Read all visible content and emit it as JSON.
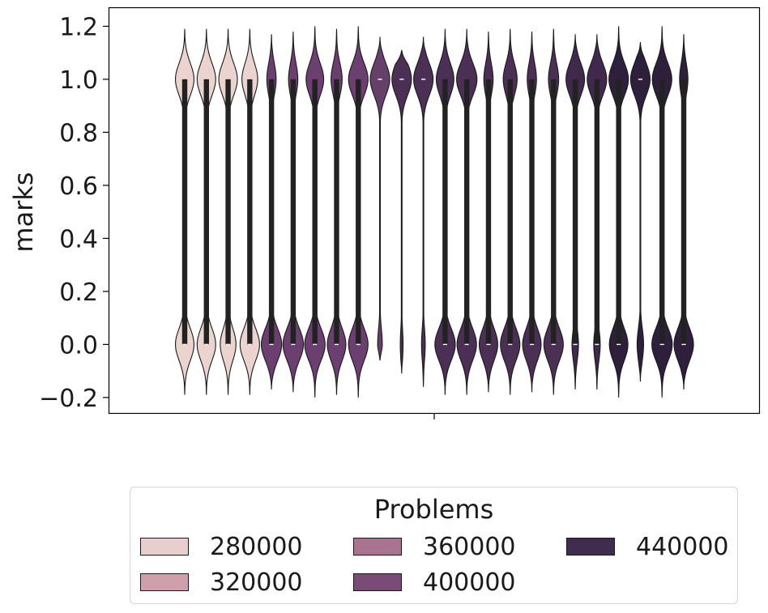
{
  "chart_data": {
    "type": "violin",
    "ylabel": "marks",
    "xlabel": "",
    "ylim": [
      -0.26,
      1.27
    ],
    "yticks": [
      "−0.2",
      "0.0",
      "0.2",
      "0.4",
      "0.6",
      "0.8",
      "1.0",
      "1.2"
    ],
    "ytick_values": [
      -0.2,
      0.0,
      0.2,
      0.4,
      0.6,
      0.8,
      1.0,
      1.2
    ],
    "legend": {
      "title": "Problems",
      "entries": [
        {
          "label": "280000",
          "color": "#e8cfcd"
        },
        {
          "label": "320000",
          "color": "#cfa0ab"
        },
        {
          "label": "360000",
          "color": "#a8748f"
        },
        {
          "label": "400000",
          "color": "#7a4b77"
        },
        {
          "label": "440000",
          "color": "#402c4f"
        }
      ]
    },
    "series": [
      {
        "color": "#ebd3cf",
        "q1": 0.0,
        "q3": 1.0,
        "wlo": 0.0,
        "whi": 1.0,
        "lo": -0.19,
        "hi": 1.19,
        "top_w": 1.0,
        "bot_w": 1.0
      },
      {
        "color": "#ebd3cf",
        "q1": 0.0,
        "q3": 1.0,
        "wlo": 0.0,
        "whi": 1.0,
        "lo": -0.19,
        "hi": 1.19,
        "top_w": 1.0,
        "bot_w": 1.0
      },
      {
        "color": "#ebd3cf",
        "q1": 0.0,
        "q3": 1.0,
        "wlo": 0.0,
        "whi": 1.0,
        "lo": -0.19,
        "hi": 1.19,
        "top_w": 1.0,
        "bot_w": 0.85
      },
      {
        "color": "#ebd3cf",
        "q1": 0.0,
        "q3": 1.0,
        "wlo": 0.0,
        "whi": 1.0,
        "lo": -0.19,
        "hi": 1.19,
        "top_w": 0.85,
        "bot_w": 1.05
      },
      {
        "color": "#6b3f6f",
        "q1": 0.0,
        "q3": 1.0,
        "wlo": 0.0,
        "whi": 1.0,
        "lo": -0.17,
        "hi": 1.17,
        "top_w": 0.5,
        "bot_w": 1.1
      },
      {
        "color": "#6b3f6f",
        "q1": 0.0,
        "q3": 1.0,
        "wlo": 0.0,
        "whi": 1.0,
        "lo": -0.18,
        "hi": 1.18,
        "top_w": 0.5,
        "bot_w": 1.1
      },
      {
        "color": "#6b3f6f",
        "q1": 0.0,
        "q3": 1.0,
        "wlo": 0.0,
        "whi": 1.0,
        "lo": -0.2,
        "hi": 1.2,
        "top_w": 0.95,
        "bot_w": 1.1
      },
      {
        "color": "#6b3f6f",
        "q1": 0.0,
        "q3": 1.0,
        "wlo": 0.0,
        "whi": 1.0,
        "lo": -0.19,
        "hi": 1.19,
        "top_w": 0.6,
        "bot_w": 1.0
      },
      {
        "color": "#6b3f6f",
        "q1": 0.0,
        "q3": 1.0,
        "wlo": 0.0,
        "whi": 1.0,
        "lo": -0.2,
        "hi": 1.2,
        "top_w": 1.05,
        "bot_w": 1.05
      },
      {
        "color": "#66406b",
        "q1": 1.0,
        "q3": 1.0,
        "wlo": 1.0,
        "whi": 1.0,
        "lo": -0.06,
        "hi": 1.16,
        "top_w": 1.05,
        "bot_w": 0.25
      },
      {
        "color": "#4b2f55",
        "q1": 1.0,
        "q3": 1.0,
        "wlo": 1.0,
        "whi": 1.0,
        "lo": -0.11,
        "hi": 1.11,
        "top_w": 1.05,
        "bot_w": 0.15
      },
      {
        "color": "#4b2f55",
        "q1": 1.0,
        "q3": 1.0,
        "wlo": 1.0,
        "whi": 1.0,
        "lo": -0.16,
        "hi": 1.16,
        "top_w": 1.05,
        "bot_w": 0.2
      },
      {
        "color": "#4b2f55",
        "q1": 0.0,
        "q3": 1.0,
        "wlo": 0.0,
        "whi": 1.0,
        "lo": -0.19,
        "hi": 1.19,
        "top_w": 0.95,
        "bot_w": 1.1
      },
      {
        "color": "#4b2f55",
        "q1": 0.0,
        "q3": 1.0,
        "wlo": 0.0,
        "whi": 1.0,
        "lo": -0.19,
        "hi": 1.19,
        "top_w": 1.1,
        "bot_w": 1.05
      },
      {
        "color": "#4b2f55",
        "q1": 0.0,
        "q3": 1.0,
        "wlo": 0.0,
        "whi": 1.0,
        "lo": -0.18,
        "hi": 1.18,
        "top_w": 0.5,
        "bot_w": 1.0
      },
      {
        "color": "#4b2f55",
        "q1": 0.0,
        "q3": 1.0,
        "wlo": 0.0,
        "whi": 1.0,
        "lo": -0.19,
        "hi": 1.19,
        "top_w": 0.75,
        "bot_w": 1.05
      },
      {
        "color": "#4b2f55",
        "q1": 0.0,
        "q3": 1.0,
        "wlo": 0.0,
        "whi": 1.0,
        "lo": -0.18,
        "hi": 1.18,
        "top_w": 0.5,
        "bot_w": 1.0
      },
      {
        "color": "#4b2f55",
        "q1": 0.0,
        "q3": 1.0,
        "wlo": 0.0,
        "whi": 1.0,
        "lo": -0.19,
        "hi": 1.19,
        "top_w": 0.55,
        "bot_w": 1.05
      },
      {
        "color": "#40294c",
        "q1": 0.0,
        "q3": 1.0,
        "wlo": 0.0,
        "whi": 1.0,
        "lo": -0.17,
        "hi": 1.17,
        "top_w": 1.0,
        "bot_w": 0.35
      },
      {
        "color": "#40294c",
        "q1": 0.0,
        "q3": 1.0,
        "wlo": 0.0,
        "whi": 1.0,
        "lo": -0.17,
        "hi": 1.17,
        "top_w": 1.05,
        "bot_w": 0.35
      },
      {
        "color": "#2e1f3d",
        "q1": 0.0,
        "q3": 1.0,
        "wlo": 0.0,
        "whi": 1.0,
        "lo": -0.2,
        "hi": 1.2,
        "top_w": 1.05,
        "bot_w": 1.0
      },
      {
        "color": "#2e1f3d",
        "q1": 1.0,
        "q3": 1.0,
        "wlo": 1.0,
        "whi": 1.0,
        "lo": -0.14,
        "hi": 1.14,
        "top_w": 1.05,
        "bot_w": 0.35
      },
      {
        "color": "#2e1f3d",
        "q1": 0.0,
        "q3": 1.0,
        "wlo": 0.0,
        "whi": 1.0,
        "lo": -0.2,
        "hi": 1.2,
        "top_w": 1.05,
        "bot_w": 1.1
      },
      {
        "color": "#2e1f3d",
        "q1": 0.0,
        "q3": 1.0,
        "wlo": 0.0,
        "whi": 1.0,
        "lo": -0.17,
        "hi": 1.17,
        "top_w": 0.45,
        "bot_w": 1.05
      }
    ]
  }
}
